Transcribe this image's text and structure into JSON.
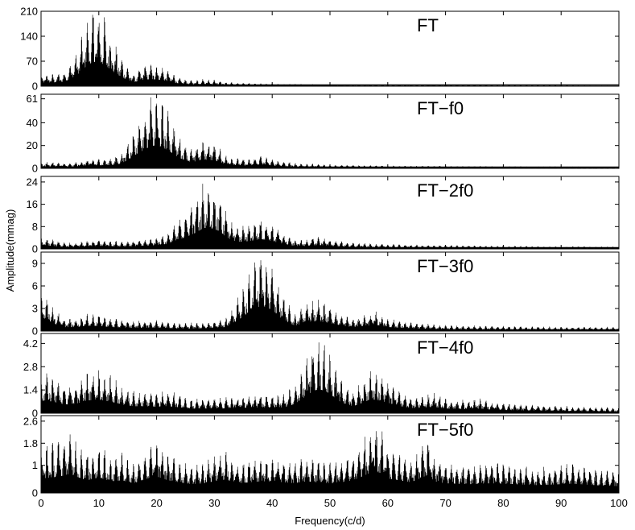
{
  "chart_data": {
    "type": "line",
    "xlabel": "Frequency(c/d)",
    "ylabel": "Amplitude(mmag)",
    "xlim": [
      0,
      100
    ],
    "x_ticks": [
      0,
      10,
      20,
      30,
      40,
      50,
      60,
      70,
      80,
      90,
      100
    ],
    "line_color": "#000000",
    "grid": false,
    "panels": [
      {
        "title": "FT",
        "ylim": [
          0,
          210
        ],
        "y_ticks": [
          0,
          70,
          140,
          210
        ],
        "envelope": [
          [
            0,
            30
          ],
          [
            2,
            30
          ],
          [
            4,
            35
          ],
          [
            6,
            80
          ],
          [
            8,
            165
          ],
          [
            9,
            190
          ],
          [
            10,
            185
          ],
          [
            11,
            175
          ],
          [
            12,
            130
          ],
          [
            14,
            70
          ],
          [
            16,
            30
          ],
          [
            18,
            55
          ],
          [
            20,
            55
          ],
          [
            22,
            40
          ],
          [
            24,
            20
          ],
          [
            26,
            15
          ],
          [
            28,
            18
          ],
          [
            30,
            16
          ],
          [
            32,
            10
          ],
          [
            35,
            8
          ],
          [
            40,
            6
          ],
          [
            50,
            4
          ],
          [
            60,
            3
          ],
          [
            70,
            3
          ],
          [
            80,
            2
          ],
          [
            90,
            2
          ],
          [
            100,
            1
          ]
        ]
      },
      {
        "title": "FT−f0",
        "ylim": [
          0,
          65
        ],
        "y_ticks": [
          0,
          20,
          40,
          61
        ],
        "envelope": [
          [
            0,
            5
          ],
          [
            2,
            5
          ],
          [
            5,
            4
          ],
          [
            8,
            7
          ],
          [
            12,
            8
          ],
          [
            14,
            12
          ],
          [
            16,
            30
          ],
          [
            18,
            48
          ],
          [
            19,
            55
          ],
          [
            20,
            58
          ],
          [
            21,
            52
          ],
          [
            22,
            45
          ],
          [
            24,
            25
          ],
          [
            26,
            15
          ],
          [
            28,
            22
          ],
          [
            30,
            20
          ],
          [
            32,
            10
          ],
          [
            34,
            8
          ],
          [
            36,
            7
          ],
          [
            38,
            10
          ],
          [
            40,
            7
          ],
          [
            44,
            4
          ],
          [
            50,
            3
          ],
          [
            60,
            2
          ],
          [
            70,
            2
          ],
          [
            80,
            1.5
          ],
          [
            90,
            1.5
          ],
          [
            100,
            1
          ]
        ]
      },
      {
        "title": "FT−2f0",
        "ylim": [
          0,
          26
        ],
        "y_ticks": [
          0,
          8,
          16,
          24
        ],
        "envelope": [
          [
            0,
            4
          ],
          [
            2,
            3
          ],
          [
            4,
            2
          ],
          [
            6,
            2
          ],
          [
            10,
            3
          ],
          [
            14,
            2.5
          ],
          [
            18,
            3
          ],
          [
            22,
            5
          ],
          [
            25,
            12
          ],
          [
            27,
            17
          ],
          [
            28,
            21
          ],
          [
            29,
            22
          ],
          [
            30,
            20
          ],
          [
            31,
            18
          ],
          [
            32,
            12
          ],
          [
            34,
            7
          ],
          [
            36,
            8
          ],
          [
            38,
            10
          ],
          [
            40,
            8
          ],
          [
            42,
            5
          ],
          [
            44,
            3
          ],
          [
            46,
            3
          ],
          [
            48,
            4
          ],
          [
            50,
            3
          ],
          [
            54,
            2
          ],
          [
            60,
            1.5
          ],
          [
            70,
            1.2
          ],
          [
            80,
            1
          ],
          [
            90,
            0.8
          ],
          [
            100,
            0.7
          ]
        ]
      },
      {
        "title": "FT−3f0",
        "ylim": [
          0,
          10.5
        ],
        "y_ticks": [
          0,
          3,
          6,
          9
        ],
        "envelope": [
          [
            0,
            5
          ],
          [
            1,
            4.5
          ],
          [
            2,
            3
          ],
          [
            4,
            1.5
          ],
          [
            6,
            1.5
          ],
          [
            8,
            2
          ],
          [
            10,
            2
          ],
          [
            12,
            1.5
          ],
          [
            16,
            1.2
          ],
          [
            20,
            1.3
          ],
          [
            24,
            1
          ],
          [
            28,
            1
          ],
          [
            32,
            1.5
          ],
          [
            34,
            4
          ],
          [
            36,
            7
          ],
          [
            37,
            8.5
          ],
          [
            38,
            9.5
          ],
          [
            39,
            9
          ],
          [
            40,
            8
          ],
          [
            41,
            6
          ],
          [
            42,
            4
          ],
          [
            44,
            2
          ],
          [
            46,
            3.5
          ],
          [
            48,
            3.8
          ],
          [
            50,
            3
          ],
          [
            52,
            2
          ],
          [
            54,
            1.5
          ],
          [
            56,
            2
          ],
          [
            58,
            2.3
          ],
          [
            60,
            1.5
          ],
          [
            64,
            1
          ],
          [
            70,
            0.7
          ],
          [
            80,
            0.6
          ],
          [
            90,
            0.5
          ],
          [
            100,
            0.5
          ]
        ]
      },
      {
        "title": "FT−4f0",
        "ylim": [
          0,
          4.8
        ],
        "y_ticks": [
          0,
          1.4,
          2.8,
          4.2
        ],
        "envelope": [
          [
            0,
            2.2
          ],
          [
            2,
            2
          ],
          [
            4,
            1.5
          ],
          [
            6,
            1.6
          ],
          [
            8,
            2.2
          ],
          [
            10,
            2.3
          ],
          [
            12,
            2
          ],
          [
            14,
            1.5
          ],
          [
            16,
            1.2
          ],
          [
            18,
            1.2
          ],
          [
            20,
            1.1
          ],
          [
            22,
            1.2
          ],
          [
            24,
            1
          ],
          [
            26,
            0.8
          ],
          [
            30,
            0.8
          ],
          [
            34,
            0.9
          ],
          [
            38,
            1
          ],
          [
            42,
            1
          ],
          [
            44,
            1.6
          ],
          [
            46,
            3
          ],
          [
            47,
            3.8
          ],
          [
            48,
            4.1
          ],
          [
            49,
            3.9
          ],
          [
            50,
            3.3
          ],
          [
            51,
            2.5
          ],
          [
            52,
            1.8
          ],
          [
            54,
            1.2
          ],
          [
            56,
            1.9
          ],
          [
            57,
            2.4
          ],
          [
            58,
            2.3
          ],
          [
            60,
            1.8
          ],
          [
            62,
            1.2
          ],
          [
            64,
            0.9
          ],
          [
            66,
            0.9
          ],
          [
            68,
            1.1
          ],
          [
            70,
            0.8
          ],
          [
            74,
            0.7
          ],
          [
            76,
            0.8
          ],
          [
            78,
            0.6
          ],
          [
            82,
            0.5
          ],
          [
            90,
            0.4
          ],
          [
            100,
            0.3
          ]
        ]
      },
      {
        "title": "FT−5f0",
        "ylim": [
          0,
          2.8
        ],
        "y_ticks": [
          0,
          1,
          1.8,
          2.6
        ],
        "envelope": [
          [
            0,
            1.5
          ],
          [
            2,
            1.6
          ],
          [
            4,
            1.8
          ],
          [
            5,
            2
          ],
          [
            6,
            1.7
          ],
          [
            8,
            1.3
          ],
          [
            10,
            1.6
          ],
          [
            12,
            1.2
          ],
          [
            14,
            1.3
          ],
          [
            16,
            1
          ],
          [
            18,
            1.4
          ],
          [
            20,
            1.7
          ],
          [
            22,
            1.3
          ],
          [
            24,
            1.1
          ],
          [
            26,
            0.9
          ],
          [
            28,
            1
          ],
          [
            30,
            1.2
          ],
          [
            32,
            1.4
          ],
          [
            34,
            1
          ],
          [
            36,
            1.1
          ],
          [
            38,
            1.2
          ],
          [
            40,
            1.2
          ],
          [
            42,
            1.1
          ],
          [
            44,
            1
          ],
          [
            46,
            1.2
          ],
          [
            48,
            1.1
          ],
          [
            50,
            1
          ],
          [
            52,
            1.1
          ],
          [
            54,
            1.3
          ],
          [
            56,
            1.8
          ],
          [
            57,
            2.1
          ],
          [
            58,
            2.2
          ],
          [
            59,
            2
          ],
          [
            60,
            1.5
          ],
          [
            62,
            1.3
          ],
          [
            64,
            1.1
          ],
          [
            66,
            1.6
          ],
          [
            67,
            1.9
          ],
          [
            68,
            1.2
          ],
          [
            70,
            1
          ],
          [
            74,
            0.9
          ],
          [
            78,
            1
          ],
          [
            82,
            0.9
          ],
          [
            86,
            0.8
          ],
          [
            90,
            0.9
          ],
          [
            92,
            0.95
          ],
          [
            96,
            0.8
          ],
          [
            100,
            0.7
          ]
        ]
      }
    ]
  }
}
